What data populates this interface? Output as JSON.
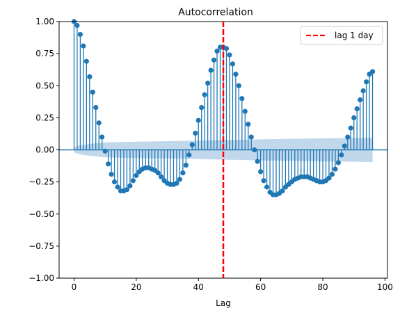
{
  "chart_data": {
    "type": "stem",
    "title": "Autocorrelation",
    "xlabel": "Lag",
    "ylabel": "",
    "xlim": [
      -4.8,
      100.8
    ],
    "ylim": [
      -1.0,
      1.0
    ],
    "xticks": [
      0,
      20,
      40,
      60,
      80,
      100
    ],
    "xtick_labels": [
      "0",
      "20",
      "40",
      "60",
      "80",
      "100"
    ],
    "yticks": [
      -1.0,
      -0.75,
      -0.5,
      -0.25,
      0.0,
      0.25,
      0.5,
      0.75,
      1.0
    ],
    "ytick_labels": [
      "−1.00",
      "−0.75",
      "−0.50",
      "−0.25",
      "0.00",
      "0.25",
      "0.50",
      "0.75",
      "1.00"
    ],
    "lags": [
      0,
      1,
      2,
      3,
      4,
      5,
      6,
      7,
      8,
      9,
      10,
      11,
      12,
      13,
      14,
      15,
      16,
      17,
      18,
      19,
      20,
      21,
      22,
      23,
      24,
      25,
      26,
      27,
      28,
      29,
      30,
      31,
      32,
      33,
      34,
      35,
      36,
      37,
      38,
      39,
      40,
      41,
      42,
      43,
      44,
      45,
      46,
      47,
      48,
      49,
      50,
      51,
      52,
      53,
      54,
      55,
      56,
      57,
      58,
      59,
      60,
      61,
      62,
      63,
      64,
      65,
      66,
      67,
      68,
      69,
      70,
      71,
      72,
      73,
      74,
      75,
      76,
      77,
      78,
      79,
      80,
      81,
      82,
      83,
      84,
      85,
      86,
      87,
      88,
      89,
      90,
      91,
      92,
      93,
      94,
      95,
      96
    ],
    "acf": [
      1.0,
      0.97,
      0.9,
      0.81,
      0.69,
      0.57,
      0.45,
      0.33,
      0.21,
      0.1,
      -0.01,
      -0.11,
      -0.19,
      -0.25,
      -0.29,
      -0.32,
      -0.32,
      -0.31,
      -0.28,
      -0.24,
      -0.2,
      -0.17,
      -0.15,
      -0.14,
      -0.14,
      -0.15,
      -0.16,
      -0.18,
      -0.21,
      -0.24,
      -0.26,
      -0.27,
      -0.27,
      -0.26,
      -0.23,
      -0.18,
      -0.12,
      -0.04,
      0.04,
      0.13,
      0.23,
      0.33,
      0.43,
      0.52,
      0.62,
      0.7,
      0.77,
      0.8,
      0.8,
      0.79,
      0.74,
      0.67,
      0.59,
      0.5,
      0.4,
      0.3,
      0.2,
      0.1,
      0.0,
      -0.09,
      -0.17,
      -0.24,
      -0.29,
      -0.33,
      -0.35,
      -0.35,
      -0.34,
      -0.32,
      -0.29,
      -0.27,
      -0.25,
      -0.23,
      -0.22,
      -0.21,
      -0.21,
      -0.21,
      -0.22,
      -0.23,
      -0.24,
      -0.25,
      -0.25,
      -0.24,
      -0.22,
      -0.19,
      -0.15,
      -0.1,
      -0.04,
      0.03,
      0.1,
      0.17,
      0.25,
      0.32,
      0.39,
      0.46,
      0.53,
      0.59,
      0.61
    ],
    "confidence_band": {
      "x": [
        0,
        2,
        5,
        10,
        20,
        30,
        40,
        48,
        60,
        70,
        80,
        90,
        96
      ],
      "upper": [
        0.02,
        0.035,
        0.047,
        0.058,
        0.064,
        0.068,
        0.072,
        0.076,
        0.082,
        0.086,
        0.09,
        0.093,
        0.095
      ],
      "lower": [
        -0.02,
        -0.035,
        -0.047,
        -0.058,
        -0.064,
        -0.068,
        -0.072,
        -0.076,
        -0.082,
        -0.086,
        -0.09,
        -0.093,
        -0.095
      ]
    },
    "reference_line": {
      "x": 48,
      "label": "lag 1 day",
      "color": "#ff0000"
    },
    "legend": {
      "position": "top-right",
      "entries": [
        "lag 1 day"
      ]
    },
    "colors": {
      "stem": "#1f77b4",
      "band": "#a6c8e4",
      "vline": "#ff0000"
    },
    "grid": false
  }
}
